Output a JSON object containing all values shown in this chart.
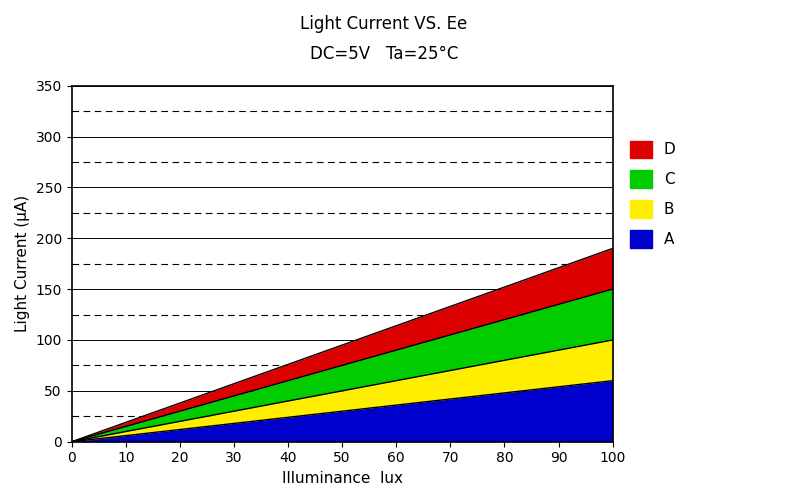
{
  "title_line1": "Light Current VS. Ee",
  "title_line2": "DC=5V   Ta=25°C",
  "xlabel": "Illuminance  lux",
  "ylabel": "Light Current (μA)",
  "xlim": [
    0,
    100
  ],
  "ylim": [
    0,
    350
  ],
  "xticks": [
    0,
    10,
    20,
    30,
    40,
    50,
    60,
    70,
    80,
    90,
    100
  ],
  "yticks": [
    0,
    50,
    100,
    150,
    200,
    250,
    300,
    350
  ],
  "dashed_gridlines": [
    25,
    75,
    125,
    175,
    225,
    275,
    325
  ],
  "bands_back_to_front": [
    {
      "label": "D",
      "color": "#dd0000",
      "top_at_100": 190,
      "bottom_at_100": 150
    },
    {
      "label": "C",
      "color": "#00cc00",
      "top_at_100": 150,
      "bottom_at_100": 100
    },
    {
      "label": "B",
      "color": "#ffee00",
      "top_at_100": 100,
      "bottom_at_100": 60
    },
    {
      "label": "A",
      "color": "#0000cc",
      "top_at_100": 60,
      "bottom_at_100": 0
    }
  ],
  "boundary_tops_at_100": [
    60,
    100,
    150,
    190
  ],
  "legend_labels": [
    "D",
    "C",
    "B",
    "A"
  ],
  "legend_colors": [
    "#dd0000",
    "#00cc00",
    "#ffee00",
    "#0000cc"
  ],
  "background_color": "#ffffff"
}
